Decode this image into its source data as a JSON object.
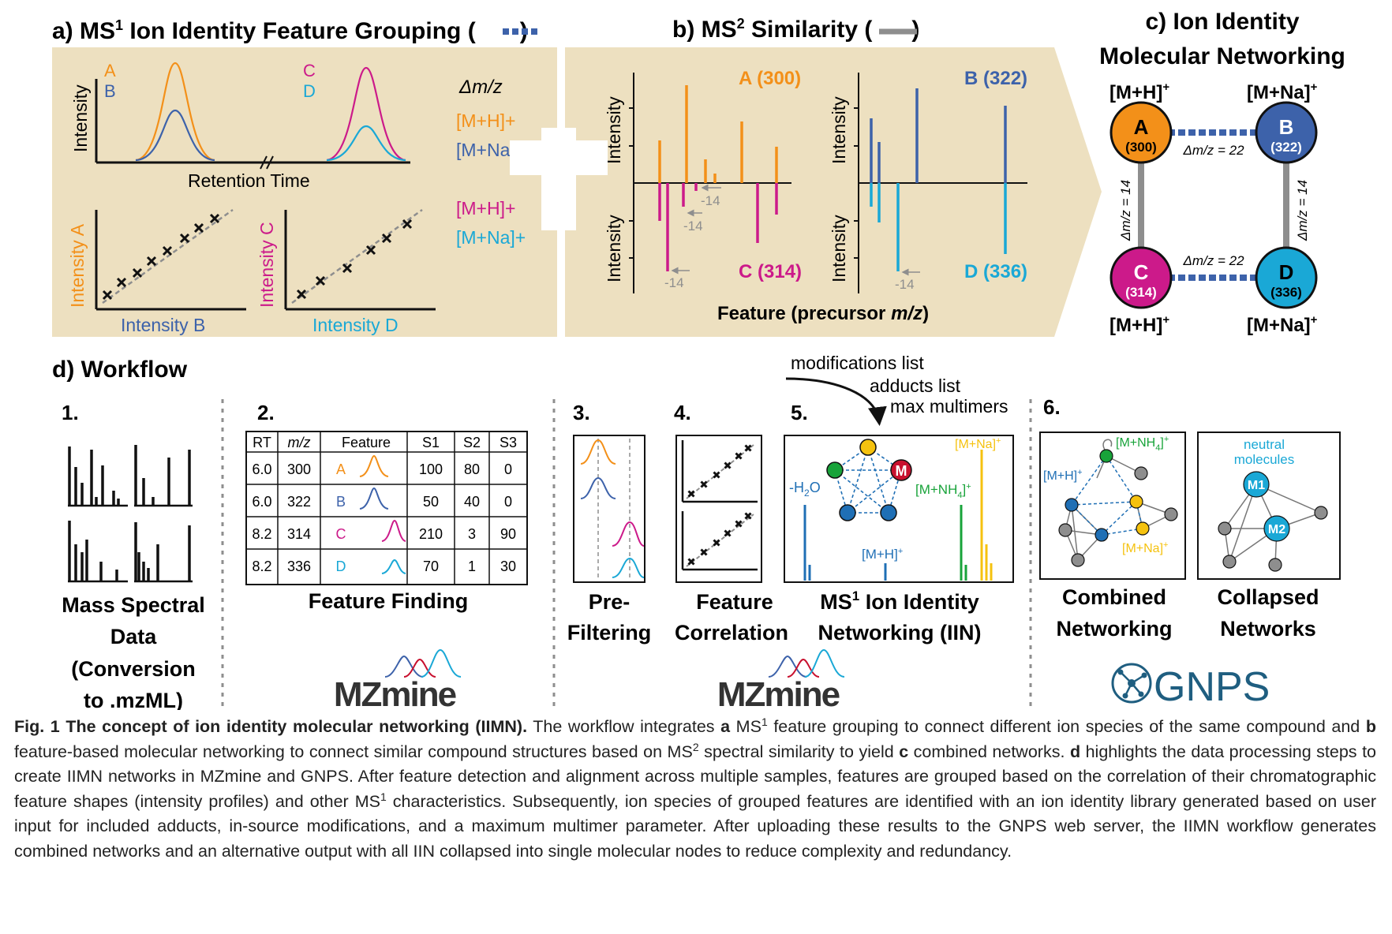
{
  "panel_a": {
    "title": "a) MS",
    "title_sup": "1",
    "title_rest": " Ion Identity Feature Grouping (",
    "title_end": ")",
    "label_A": "A",
    "label_B": "B",
    "label_C": "C",
    "label_D": "D",
    "y_intensity": "Intensity",
    "x_rt": "Retention Time",
    "delta_mz": "Δm/z",
    "adduct_mh_1": "[M+H]+",
    "adduct_mna_1": "[M+Na]+",
    "adduct_mh_2": "[M+H]+",
    "adduct_mna_2": "[M+Na]+",
    "scatter1_y": "Intensity A",
    "scatter1_x": "Intensity B",
    "scatter2_y": "Intensity C",
    "scatter2_x": "Intensity D"
  },
  "panel_b": {
    "title": "b) MS",
    "title_sup": "2",
    "title_rest": " Similarity (",
    "title_end": ")",
    "y_intensity": "Intensity",
    "label_A": "A (300)",
    "label_B": "B (322)",
    "label_C": "C (314)",
    "label_D": "D (336)",
    "shift": "-14",
    "x_label": "Feature (precursor ",
    "x_label_italic": "m/z",
    "x_label_end": ")"
  },
  "panel_c": {
    "title_1": "c) Ion Identity",
    "title_2": "Molecular Networking",
    "adduct_mh": "[M+H]",
    "adduct_mna": "[M+Na]",
    "plus": "+",
    "node_A": "A",
    "node_A_mz": "(300)",
    "node_B": "B",
    "node_B_mz": "(322)",
    "node_C": "C",
    "node_C_mz": "(314)",
    "node_D": "D",
    "node_D_mz": "(336)",
    "delta_22": "Δm/z = 22",
    "delta_14": "Δm/z = 14"
  },
  "panel_d": {
    "title": "d) Workflow",
    "step1_num": "1.",
    "step1_label": [
      "Mass Spectral",
      "Data",
      "(Conversion",
      "to .mzML)"
    ],
    "step2_num": "2.",
    "table_headers": [
      "RT",
      "m/z",
      "Feature",
      "S1",
      "S2",
      "S3"
    ],
    "table_rows": [
      {
        "rt": "6.0",
        "mz": "300",
        "f": "A",
        "s1": "100",
        "s2": "80",
        "s3": "0"
      },
      {
        "rt": "6.0",
        "mz": "322",
        "f": "B",
        "s1": "50",
        "s2": "40",
        "s3": "0"
      },
      {
        "rt": "8.2",
        "mz": "314",
        "f": "C",
        "s1": "210",
        "s2": "3",
        "s3": "90"
      },
      {
        "rt": "8.2",
        "mz": "336",
        "f": "D",
        "s1": "70",
        "s2": "1",
        "s3": "30"
      }
    ],
    "step2_label": "Feature Finding",
    "mzmine_1": "MZmine",
    "step3_num": "3.",
    "step3_label": [
      "Pre-",
      "Filtering"
    ],
    "step4_num": "4.",
    "step4_label": [
      "Feature",
      "Correlation"
    ],
    "step5_num": "5.",
    "step5_inputs": [
      "modifications list",
      "adducts list",
      "max multimers"
    ],
    "step5_label_1": "MS",
    "step5_label_sup": "1",
    "step5_label_rest": " Ion Identity",
    "step5_label_2": "Networking (IIN)",
    "iin_h2o": "-H",
    "iin_h2o_sub": "2",
    "iin_h2o_end": "O",
    "iin_mna": "[M+Na]",
    "iin_mnh4": "[M+NH",
    "iin_mnh4_sub": "4",
    "iin_mnh4_end": "]",
    "iin_mh": "[M+H]",
    "iin_plus": "+",
    "iin_m": "M",
    "mzmine_2": "MZmine",
    "step6_num": "6.",
    "combined_mnh4": "[M+NH",
    "combined_mh": "[M+H]",
    "combined_mna": "[M+Na]",
    "neutral_1": "neutral",
    "neutral_2": "molecules",
    "m1": "M1",
    "m2": "M2",
    "step6_label_a": [
      "Combined",
      "Networking"
    ],
    "step6_label_b": [
      "Collapsed",
      "Networks"
    ],
    "gnps": "GNPS"
  },
  "caption": {
    "fig": "Fig. 1 The concept of ion identity molecular networking (IIMN).",
    "t1": " The workflow integrates ",
    "a": "a",
    "t2": " MS",
    "sup1": "1",
    "t3": " feature grouping to connect different ion species of the same compound and ",
    "b": "b",
    "t4": " feature-based molecular networking to connect similar compound structures based on MS",
    "sup2": "2",
    "t5": " spectral similarity to yield ",
    "c": "c",
    "t6": " combined networks. ",
    "d": "d",
    "t7": " highlights the data processing steps to create IIMN networks in MZmine and GNPS. After feature detection and alignment across multiple samples, features are grouped based on the correlation of their chromatographic feature shapes (intensity profiles) and other MS",
    "sup3": "1",
    "t8": " characteristics. Subsequently, ion species of grouped features are identified with an ion identity library generated based on user input for included adducts, in-source modifications, and a maximum multimer parameter. After uploading these results to the GNPS web server, the IIMN workflow generates combined networks and an alternative output with all IIN collapsed into single molecular nodes to reduce complexity and redundancy."
  },
  "colors": {
    "orange": "#f39019",
    "blue": "#3d62aa",
    "magenta": "#cc1a8a",
    "cyan": "#1aa8d6",
    "panel_bg": "#ede0c0",
    "gray": "#8e8e8e",
    "green": "#18a33a",
    "red": "#c8102e",
    "yellow": "#f5c20f"
  }
}
